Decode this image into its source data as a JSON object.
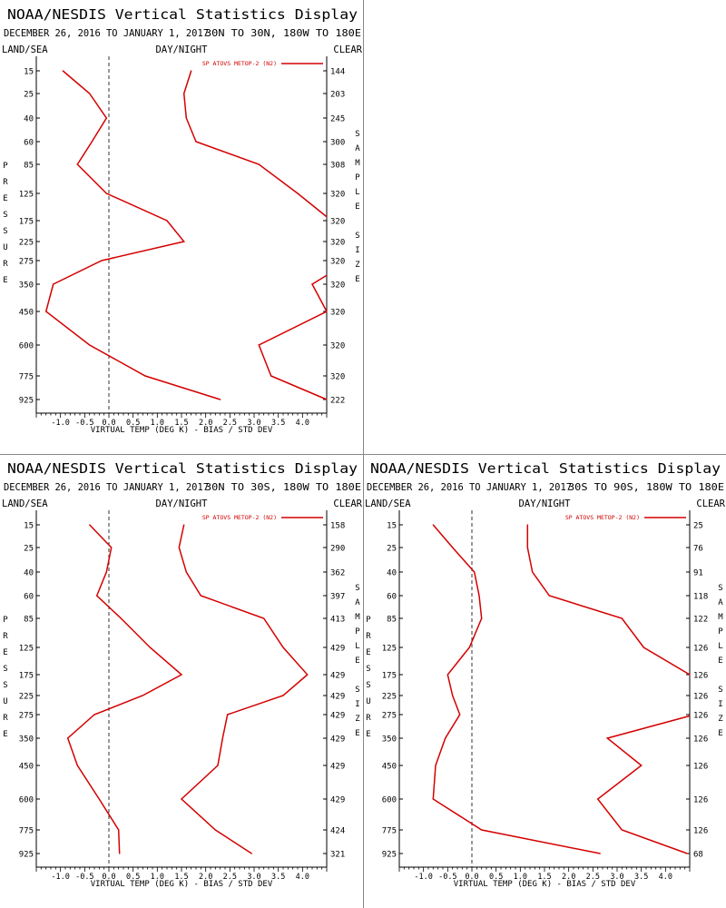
{
  "chart_data": [
    {
      "type": "line",
      "title": "NOAA/NESDIS Vertical Statistics Display",
      "subtitle": "DECEMBER 26, 2016 TO JANUARY 1, 2017",
      "region": "30N TO 30N, 180W TO 180E",
      "corner_left": "LAND/SEA",
      "corner_center": "DAY/NIGHT",
      "corner_right": "CLEAR",
      "left_axis_label": "PRESSURE",
      "right_axis_label": "SAMPLE SIZE",
      "xlabel": "VIRTUAL TEMP (DEG K) - BIAS / STD DEV",
      "legend": "SP ATOVS METOP-2 (N2)",
      "xlim": [
        -1.5,
        4.5
      ],
      "x_ticks": [
        "-1.0",
        "-0.5",
        "0.0",
        "0.5",
        "1.0",
        "1.5",
        "2.0",
        "2.5",
        "3.0",
        "3.5",
        "4.0"
      ],
      "pressure_levels": [
        "15",
        "25",
        "40",
        "60",
        "85",
        "125",
        "175",
        "225",
        "275",
        "350",
        "450",
        "600",
        "775",
        "925"
      ],
      "sample_size": [
        "144",
        "203",
        "245",
        "300",
        "308",
        "320",
        "320",
        "320",
        "320",
        "320",
        "320",
        "320",
        "320",
        "222"
      ],
      "series": [
        {
          "name": "bias",
          "values": [
            -0.95,
            -0.4,
            -0.05,
            -0.35,
            -0.65,
            -0.05,
            1.2,
            1.55,
            -0.15,
            -1.15,
            -1.3,
            -0.4,
            0.75,
            2.3
          ]
        },
        {
          "name": "std_dev",
          "values": [
            1.7,
            1.55,
            1.6,
            1.8,
            3.1,
            3.9,
            4.6,
            4.9,
            5.0,
            4.2,
            4.5,
            3.1,
            3.35,
            4.5
          ]
        }
      ]
    },
    {
      "type": "line",
      "title": "NOAA/NESDIS Vertical Statistics Display",
      "subtitle": "DECEMBER 26, 2016 TO JANUARY 1, 2017",
      "region": "30N TO 30S, 180W TO 180E",
      "corner_left": "LAND/SEA",
      "corner_center": "DAY/NIGHT",
      "corner_right": "CLEAR",
      "left_axis_label": "PRESSURE",
      "right_axis_label": "SAMPLE SIZE",
      "xlabel": "VIRTUAL TEMP (DEG K) - BIAS / STD DEV",
      "legend": "SP ATOVS METOP-2 (N2)",
      "xlim": [
        -1.5,
        4.5
      ],
      "x_ticks": [
        "-1.0",
        "-0.5",
        "0.0",
        "0.5",
        "1.0",
        "1.5",
        "2.0",
        "2.5",
        "3.0",
        "3.5",
        "4.0"
      ],
      "pressure_levels": [
        "15",
        "25",
        "40",
        "60",
        "85",
        "125",
        "175",
        "225",
        "275",
        "350",
        "450",
        "600",
        "775",
        "925"
      ],
      "sample_size": [
        "158",
        "290",
        "362",
        "397",
        "413",
        "429",
        "429",
        "429",
        "429",
        "429",
        "429",
        "429",
        "424",
        "321"
      ],
      "series": [
        {
          "name": "bias",
          "values": [
            -0.4,
            0.05,
            -0.05,
            -0.25,
            0.25,
            0.85,
            1.5,
            0.7,
            -0.3,
            -0.85,
            -0.65,
            -0.2,
            0.2,
            0.22
          ]
        },
        {
          "name": "std_dev",
          "values": [
            1.55,
            1.45,
            1.6,
            1.9,
            3.2,
            3.6,
            4.1,
            3.6,
            2.45,
            2.35,
            2.25,
            1.5,
            2.2,
            2.95
          ]
        }
      ]
    },
    {
      "type": "line",
      "title": "NOAA/NESDIS Vertical Statistics Display",
      "subtitle": "DECEMBER 26, 2016 TO JANUARY 1, 2017",
      "region": "30S TO 90S, 180W TO 180E",
      "corner_left": "LAND/SEA",
      "corner_center": "DAY/NIGHT",
      "corner_right": "CLEAR",
      "left_axis_label": "PRESSURE",
      "right_axis_label": "SAMPLE SIZE",
      "xlabel": "VIRTUAL TEMP (DEG K) - BIAS / STD DEV",
      "legend": "SP ATOVS METOP-2 (N2)",
      "xlim": [
        -1.5,
        4.5
      ],
      "x_ticks": [
        "-1.0",
        "-0.5",
        "0.0",
        "0.5",
        "1.0",
        "1.5",
        "2.0",
        "2.5",
        "3.0",
        "3.5",
        "4.0"
      ],
      "pressure_levels": [
        "15",
        "25",
        "40",
        "60",
        "85",
        "125",
        "175",
        "225",
        "275",
        "350",
        "450",
        "600",
        "775",
        "925"
      ],
      "sample_size": [
        "25",
        "76",
        "91",
        "118",
        "122",
        "126",
        "126",
        "126",
        "126",
        "126",
        "126",
        "126",
        "126",
        "68"
      ],
      "series": [
        {
          "name": "bias",
          "values": [
            -0.8,
            -0.4,
            0.05,
            0.15,
            0.2,
            -0.05,
            -0.5,
            -0.4,
            -0.25,
            -0.55,
            -0.75,
            -0.8,
            0.2,
            2.65
          ]
        },
        {
          "name": "std_dev",
          "values": [
            1.15,
            1.15,
            1.25,
            1.6,
            3.1,
            3.55,
            4.5,
            4.8,
            4.6,
            2.8,
            3.5,
            2.6,
            3.1,
            4.45
          ]
        }
      ]
    }
  ]
}
